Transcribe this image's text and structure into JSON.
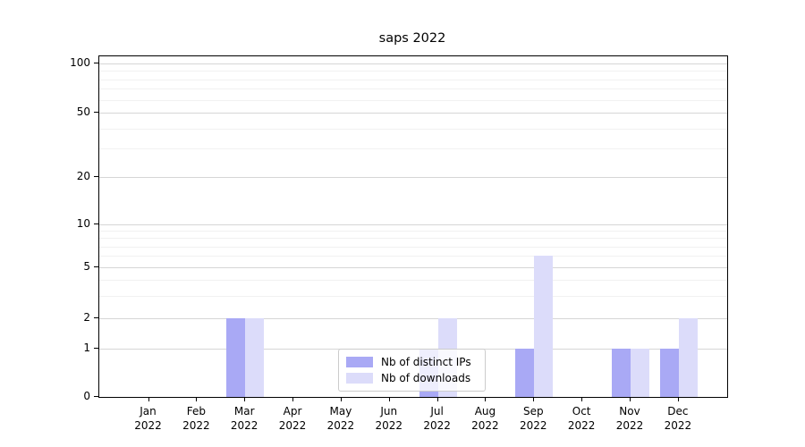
{
  "chart_data": {
    "type": "bar",
    "title": "saps 2022",
    "xlabel": "",
    "ylabel": "",
    "categories": [
      "Jan",
      "Feb",
      "Mar",
      "Apr",
      "May",
      "Jun",
      "Jul",
      "Aug",
      "Sep",
      "Oct",
      "Nov",
      "Dec"
    ],
    "year": "2022",
    "series": [
      {
        "name": "Nb of distinct IPs",
        "color": "#a9a9f5",
        "values": [
          0,
          0,
          2,
          0,
          0,
          0,
          1,
          0,
          1,
          0,
          1,
          1
        ]
      },
      {
        "name": "Nb of downloads",
        "color": "#dcdcfa",
        "values": [
          0,
          0,
          2,
          0,
          0,
          0,
          2,
          0,
          6,
          0,
          1,
          2
        ]
      }
    ],
    "yscale": "symlog",
    "yticks": [
      0,
      1,
      2,
      5,
      10,
      20,
      50,
      100
    ],
    "minor_yticks": [
      3,
      4,
      6,
      7,
      8,
      9,
      30,
      40,
      60,
      70,
      80,
      90
    ],
    "ylim": [
      0,
      120
    ],
    "grid": "horizontal",
    "legend": {
      "position": "lower-center-inside",
      "labels": [
        "Nb of distinct IPs",
        "Nb of downloads"
      ]
    },
    "colors": {
      "major_grid": "#d6d6d6",
      "minor_grid": "#f1f1f1",
      "axis": "#000000",
      "background": "#ffffff"
    }
  }
}
